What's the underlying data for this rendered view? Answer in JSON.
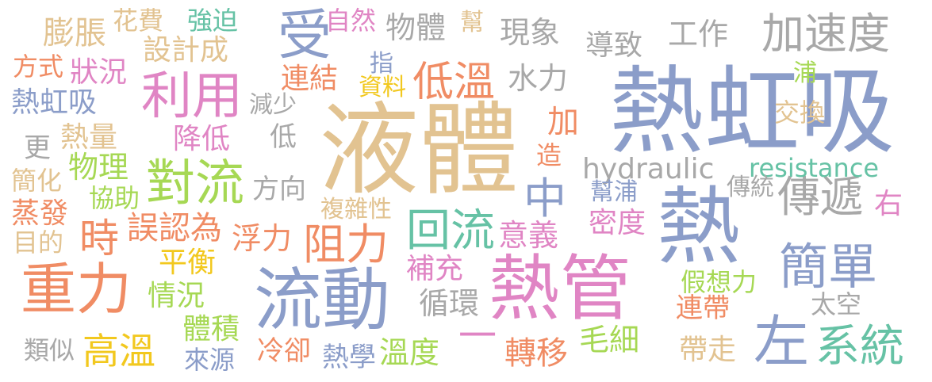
{
  "word_cloud": {
    "words": [
      {
        "text": "液體",
        "color": "#e2c391"
      },
      {
        "text": "熱虹吸",
        "color": "#8b9dc9"
      },
      {
        "text": "熱管",
        "color": "#e085c4"
      },
      {
        "text": "熱",
        "color": "#8b9dc9"
      },
      {
        "text": "流動",
        "color": "#8b9dc9"
      },
      {
        "text": "重力",
        "color": "#f08c64"
      },
      {
        "text": "加速度",
        "color": "#a8a8a8"
      },
      {
        "text": "系統",
        "color": "#66c2a5"
      },
      {
        "text": "左",
        "color": "#8b9dc9"
      },
      {
        "text": "簡單",
        "color": "#8b9dc9"
      },
      {
        "text": "傳遞",
        "color": "#a8a8a8"
      },
      {
        "text": "受",
        "color": "#8b9dc9"
      },
      {
        "text": "利用",
        "color": "#e085c4"
      },
      {
        "text": "對流",
        "color": "#a6d854"
      },
      {
        "text": "回流",
        "color": "#66c2a5"
      },
      {
        "text": "阻力",
        "color": "#f08c64"
      },
      {
        "text": "低溫",
        "color": "#f08c64"
      },
      {
        "text": "中",
        "color": "#8b9dc9"
      },
      {
        "text": "時",
        "color": "#f08c64"
      },
      {
        "text": "高溫",
        "color": "#f2c81e"
      },
      {
        "text": "hydraulic",
        "color": "#a8a8a8"
      },
      {
        "text": "resistance",
        "color": "#66c2a5"
      },
      {
        "text": "現象",
        "color": "#a8a8a8"
      },
      {
        "text": "物體",
        "color": "#a8a8a8"
      },
      {
        "text": "工作",
        "color": "#a8a8a8"
      },
      {
        "text": "導致",
        "color": "#a8a8a8"
      },
      {
        "text": "水力",
        "color": "#a8a8a8"
      },
      {
        "text": "連結",
        "color": "#f08c64"
      },
      {
        "text": "設計成",
        "color": "#e2c391"
      },
      {
        "text": "狀況",
        "color": "#e085c4"
      },
      {
        "text": "熱虹吸",
        "color": "#8b9dc9"
      },
      {
        "text": "方式",
        "color": "#f08c64"
      },
      {
        "text": "膨脹",
        "color": "#e2c391"
      },
      {
        "text": "花費",
        "color": "#e2c391"
      },
      {
        "text": "強迫",
        "color": "#66c2a5"
      },
      {
        "text": "自然",
        "color": "#e085c4"
      },
      {
        "text": "幫",
        "color": "#e2c391"
      },
      {
        "text": "指",
        "color": "#8b9dc9"
      },
      {
        "text": "資料",
        "color": "#f2c81e"
      },
      {
        "text": "減少",
        "color": "#a8a8a8"
      },
      {
        "text": "低",
        "color": "#a8a8a8"
      },
      {
        "text": "降低",
        "color": "#e085c4"
      },
      {
        "text": "熱量",
        "color": "#e2c391"
      },
      {
        "text": "更",
        "color": "#a8a8a8"
      },
      {
        "text": "物理",
        "color": "#a6d854"
      },
      {
        "text": "簡化",
        "color": "#e2c391"
      },
      {
        "text": "協助",
        "color": "#a6d854"
      },
      {
        "text": "方向",
        "color": "#a8a8a8"
      },
      {
        "text": "蒸發",
        "color": "#f08c64"
      },
      {
        "text": "目的",
        "color": "#e2c391"
      },
      {
        "text": "誤認為",
        "color": "#f08c64"
      },
      {
        "text": "複雜性",
        "color": "#e2c391"
      },
      {
        "text": "浮力",
        "color": "#f08c64"
      },
      {
        "text": "平衡",
        "color": "#f2c81e"
      },
      {
        "text": "情況",
        "color": "#a6d854"
      },
      {
        "text": "體積",
        "color": "#a6d854"
      },
      {
        "text": "來源",
        "color": "#8b9dc9"
      },
      {
        "text": "類似",
        "color": "#a8a8a8"
      },
      {
        "text": "冷卻",
        "color": "#f08c64"
      },
      {
        "text": "熱學",
        "color": "#8b9dc9"
      },
      {
        "text": "溫度",
        "color": "#a6d854"
      },
      {
        "text": "一",
        "color": "#e085c4"
      },
      {
        "text": "轉移",
        "color": "#f08c64"
      },
      {
        "text": "毛細",
        "color": "#a6d854"
      },
      {
        "text": "循環",
        "color": "#a8a8a8"
      },
      {
        "text": "補充",
        "color": "#e085c4"
      },
      {
        "text": "意義",
        "color": "#e085c4"
      },
      {
        "text": "密度",
        "color": "#e085c4"
      },
      {
        "text": "幫浦",
        "color": "#8b9dc9"
      },
      {
        "text": "加",
        "color": "#f08c64"
      },
      {
        "text": "造",
        "color": "#f08c64"
      },
      {
        "text": "浦",
        "color": "#a6d854"
      },
      {
        "text": "交換",
        "color": "#e2c391"
      },
      {
        "text": "傳統",
        "color": "#a8a8a8"
      },
      {
        "text": "右",
        "color": "#e085c4"
      },
      {
        "text": "假想力",
        "color": "#a6d854"
      },
      {
        "text": "連帶",
        "color": "#f08c64"
      },
      {
        "text": "太空",
        "color": "#a8a8a8"
      },
      {
        "text": "帶走",
        "color": "#e2c391"
      }
    ]
  }
}
